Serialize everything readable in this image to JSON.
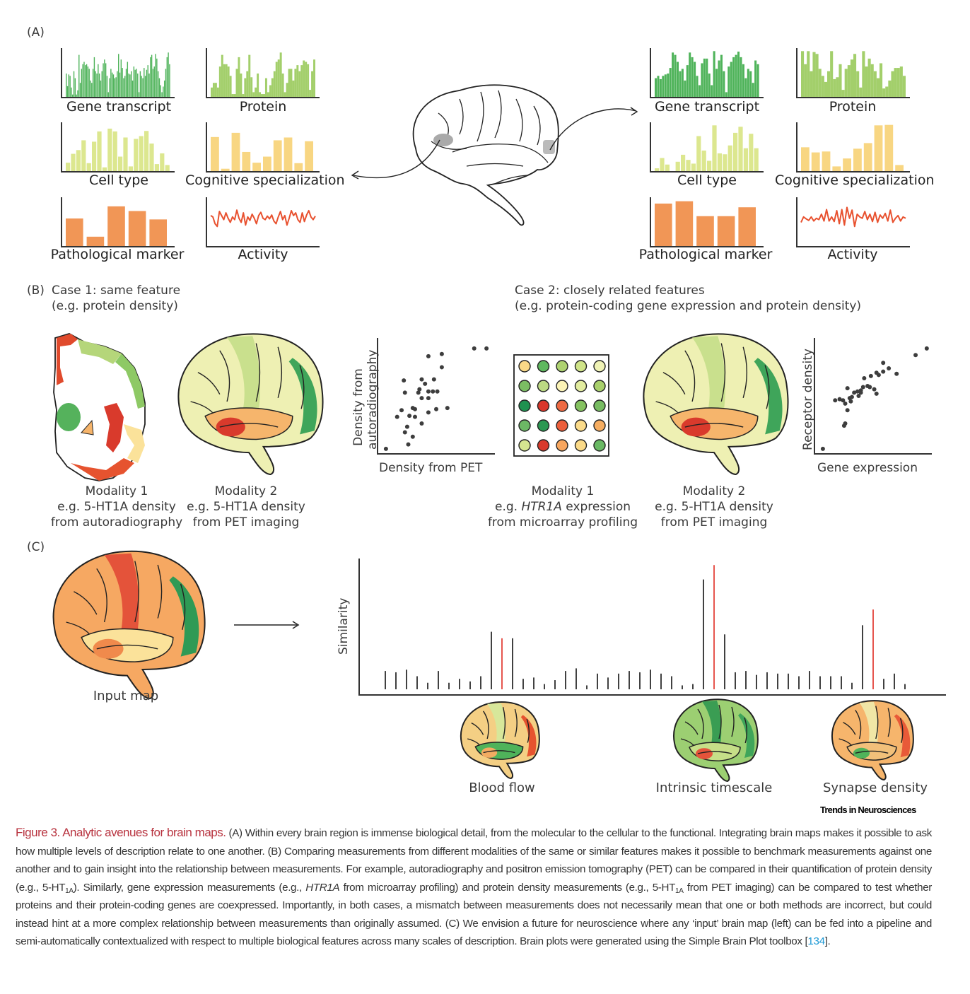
{
  "panel_labels": {
    "a": "(A)",
    "b": "(B)",
    "c": "(C)"
  },
  "panel_a": {
    "left_region_charts": [
      {
        "id": "gene-transcript",
        "label": "Gene transcript",
        "type": "bar",
        "color": "#4fb35a"
      },
      {
        "id": "protein",
        "label": "Protein",
        "type": "bar",
        "color": "#a3cf6b"
      },
      {
        "id": "cell-type",
        "label": "Cell type",
        "type": "bar",
        "color": "#dce78f"
      },
      {
        "id": "cognitive-specialization",
        "label": "Cognitive specialization",
        "type": "bar",
        "color": "#f8d682"
      },
      {
        "id": "pathological-marker",
        "label": "Pathological marker",
        "type": "bar",
        "color": "#f19656"
      },
      {
        "id": "activity",
        "label": "Activity",
        "type": "line",
        "color": "#e8512f"
      }
    ],
    "right_region_charts_labels": [
      "Gene transcript",
      "Protein",
      "Cell type",
      "Cognitive specialization",
      "Pathological marker",
      "Activity"
    ],
    "brain_icon": "brain-outline-icon"
  },
  "panel_b": {
    "case1_title": "Case 1: same feature",
    "case1_subtitle": "(e.g. protein density)",
    "case2_title": "Case 2: closely related features",
    "case2_subtitle": "(e.g. protein-coding gene expression and protein density)",
    "case1_mod1": [
      "Modality 1",
      "e.g. 5-HT1A density",
      "from autoradiography"
    ],
    "case1_mod2": [
      "Modality 2",
      "e.g. 5-HT1A density",
      "from PET imaging"
    ],
    "case2_mod1": {
      "line1": "Modality 1",
      "line2_prefix": "e.g. ",
      "line2_italic": "HTR1A",
      "line2_suffix": " expression",
      "line3": "from microarray profiling"
    },
    "case2_mod2": [
      "Modality 2",
      "e.g. 5-HT1A density",
      "from PET imaging"
    ],
    "microarray_colors": [
      [
        "#f9d887",
        "#5fb85f",
        "#aed271",
        "#d0e489",
        "#eff2b5"
      ],
      [
        "#7bbd63",
        "#bcd983",
        "#fbf3b6",
        "#e2ec9f",
        "#a9d06c"
      ],
      [
        "#1f9150",
        "#d9362b",
        "#ee6a43",
        "#85c261",
        "#78bc62"
      ],
      [
        "#6cb865",
        "#2c9852",
        "#ec5f3c",
        "#fbdb8a",
        "#f6ad61"
      ],
      [
        "#d5e690",
        "#d93a2c",
        "#f7a65f",
        "#fbda88",
        "#6ab964"
      ]
    ]
  },
  "panel_c": {
    "input_map_label": "Input map",
    "target_maps": [
      "Blood flow",
      "Intrinsic timescale",
      "Synapse density"
    ]
  },
  "journal": "Trends in Neurosciences",
  "caption": {
    "title": "Figure 3. Analytic avenues for brain maps.",
    "part1": " (A) Within every brain region is immense biological detail, from the molecular to the cellular to the functional. Integrating brain maps makes it possible to ask how multiple levels of description relate to one another. (B) Comparing measurements from different modalities of the same or similar features makes it possible to benchmark measurements against one another and to gain insight into the relationship between measurements. For example, autoradiography and positron emission tomography (PET) can be compared in their quantification of protein density (e.g., 5-HT",
    "sub1": "1A",
    "part2": "). Similarly, gene expression measurements (e.g., ",
    "italic": "HTR1A",
    "part3": " from microarray profiling) and protein density measurements (e.g., 5-HT",
    "sub2": "1A",
    "part4": " from PET imaging) can be compared to test whether proteins and their protein-coding genes are coexpressed. Importantly, in both cases, a mismatch between measurements does not necessarily mean that one or both methods are incorrect, but could instead hint at a more complex relationship between measurements than originally assumed. (C) We envision a future for neuroscience where any ‘input’ brain map (left) can be fed into a pipeline and semi-automatically contextualized with respect to multiple biological features across many scales of description. Brain plots were generated using the Simple Brain Plot toolbox [",
    "ref": "134",
    "part5": "]."
  },
  "colors": {
    "accent_red": "#e02b22",
    "stem_black": "#111111",
    "caption_title": "#b8333f",
    "ref_link": "#1e9ad6"
  },
  "chart_data": [
    {
      "id": "a-left-cell-type",
      "type": "bar",
      "title": "Cell type",
      "ylim": [
        0,
        1
      ],
      "values": [
        0.18,
        0.37,
        0.45,
        0.66,
        0.17,
        0.63,
        0.85,
        0.08,
        0.91,
        0.85,
        0.31,
        0.72,
        0.1,
        0.69,
        0.75,
        0.86,
        0.59,
        0.15,
        0.38,
        0.13
      ]
    },
    {
      "id": "a-left-cognitive",
      "type": "bar",
      "title": "Cognitive specialization",
      "ylim": [
        0,
        1
      ],
      "values": [
        0.73,
        0.05,
        0.82,
        0.41,
        0.18,
        0.31,
        0.66,
        0.72,
        0.17,
        0.64
      ]
    },
    {
      "id": "a-left-pathological",
      "type": "bar",
      "title": "Pathological marker",
      "ylim": [
        0,
        1
      ],
      "values": [
        0.59,
        0.2,
        0.85,
        0.75,
        0.57
      ]
    },
    {
      "id": "a-right-cell-type",
      "type": "bar",
      "title": "Cell type",
      "ylim": [
        0,
        1
      ],
      "values": [
        0.06,
        0.28,
        0.14,
        0,
        0.2,
        0.35,
        0.24,
        0.16,
        0.75,
        0.44,
        0.22,
        0.98,
        0.38,
        0.36,
        0.55,
        0.82,
        0.95,
        0.49,
        0.8,
        0.49
      ]
    },
    {
      "id": "a-right-cognitive",
      "type": "bar",
      "title": "Cognitive specialization",
      "ylim": [
        0,
        1
      ],
      "values": [
        0.51,
        0.4,
        0.42,
        0.1,
        0.27,
        0.48,
        0.6,
        0.98,
        0.99,
        0.13
      ]
    },
    {
      "id": "a-right-pathological",
      "type": "bar",
      "title": "Pathological marker",
      "ylim": [
        0,
        1
      ],
      "values": [
        0.91,
        0.96,
        0.64,
        0.64,
        0.83
      ]
    },
    {
      "id": "a-left-gene-transcript",
      "type": "bar",
      "title": "Gene transcript",
      "ylim": [
        0,
        1
      ],
      "values": [
        0.5,
        0.23,
        0.48,
        0.45,
        0.2,
        0.05,
        0.55,
        0.4,
        0.05,
        0.14,
        0.9,
        0.3,
        0.6,
        0.7,
        0.75,
        0.68,
        0.7,
        0.65,
        0.6,
        0.35,
        0.3,
        0.6,
        0.85,
        0.55,
        0.5,
        0.7,
        0.5,
        0.35,
        0.55,
        0.72,
        0.8,
        0.72,
        0.45,
        0.1,
        0.4,
        0.6,
        0.52,
        0.48,
        0.4,
        0.42,
        0.55,
        0.92,
        0.52,
        0.8,
        0.62,
        0.4,
        0.45,
        0.6,
        0.75,
        0.5,
        0.48,
        0.55,
        0.35,
        0.65,
        0.58,
        0.6,
        0.5,
        0.1,
        0.55,
        0.45,
        0.4,
        0.62,
        0.45,
        0.58,
        0.68,
        0.5,
        0.85,
        0.9,
        0.6,
        0.65,
        0.92,
        0.82,
        0.55,
        0.4,
        0.25,
        0.1,
        0.22,
        0.35,
        0.6,
        0.85,
        0.95,
        0.7
      ]
    },
    {
      "id": "a-left-protein",
      "type": "bar",
      "title": "Protein",
      "ylim": [
        0,
        1
      ],
      "values": [
        0.2,
        0.3,
        0.3,
        0.2,
        0.65,
        0.9,
        0.7,
        0.7,
        0.65,
        0.45,
        0.06,
        0.06,
        0.6,
        0.85,
        0.5,
        0.06,
        0.4,
        0.55,
        0.9,
        0.42,
        0.1,
        0.2,
        0.5,
        0.1,
        0.06,
        0.06,
        0.4,
        0.1,
        0.25,
        0.4,
        0.55,
        0.75,
        0.8,
        0.95,
        0.5,
        0.1,
        0.3,
        0.6,
        0.6,
        0.35,
        0.6,
        0.68,
        0.55,
        0.68,
        0.78,
        0.75,
        0.7,
        0.15,
        0.55,
        0.8
      ]
    },
    {
      "id": "a-right-gene-transcript",
      "type": "bar",
      "title": "Gene transcript",
      "ylim": [
        0,
        1
      ],
      "values": [
        0.4,
        0.45,
        0.38,
        0.45,
        0.48,
        0.5,
        0.62,
        0.95,
        0.9,
        0.75,
        0.55,
        0.6,
        0.35,
        0.68,
        0.95,
        0.85,
        0.75,
        0.45,
        0.25,
        0.72,
        0.82,
        0.82,
        0.5,
        0.25,
        0.98,
        0.6,
        0.78,
        0.9,
        0.55,
        0.1,
        0.65,
        0.75,
        0.85,
        0.9,
        0.97,
        0.85,
        0.7,
        0.4,
        0.6,
        0.55,
        0.3,
        0.78,
        0.7
      ]
    },
    {
      "id": "a-right-protein",
      "type": "bar",
      "title": "Protein",
      "ylim": [
        0,
        1
      ],
      "values": [
        0.98,
        0.7,
        0.98,
        0.55,
        0.96,
        0.92,
        0.6,
        0.45,
        0.32,
        0.55,
        0.98,
        0.38,
        0.42,
        0.7,
        0.15,
        0.6,
        0.68,
        0.8,
        0.92,
        0.55,
        0.2,
        0.98,
        0.65,
        0.82,
        0.7,
        0.55,
        0.4,
        0.72,
        0.18,
        0.22,
        0.35,
        0.55,
        0.62,
        0.62,
        0.65,
        0.45
      ]
    },
    {
      "id": "a-left-activity",
      "type": "line",
      "title": "Activity",
      "ylim": [
        0,
        1
      ],
      "values": [
        0.6,
        0.55,
        0.3,
        0.2,
        0.75,
        0.6,
        0.45,
        0.7,
        0.5,
        0.35,
        0.55,
        0.45,
        0.8,
        0.5,
        0.35,
        0.7,
        0.25,
        0.55,
        0.42,
        0.65,
        0.5,
        0.3,
        0.6,
        0.72,
        0.5,
        0.45,
        0.58,
        0.48,
        0.62,
        0.4,
        0.3,
        0.55,
        0.75,
        0.45,
        0.6,
        0.25,
        0.5,
        0.78,
        0.6,
        0.7,
        0.45,
        0.35,
        0.7,
        0.38,
        0.62,
        0.78,
        0.55,
        0.45,
        0.58
      ]
    },
    {
      "id": "a-right-activity",
      "type": "line",
      "title": "Activity",
      "ylim": [
        0,
        1
      ],
      "values": [
        0.35,
        0.55,
        0.48,
        0.42,
        0.55,
        0.4,
        0.5,
        0.45,
        0.65,
        0.4,
        0.82,
        0.4,
        0.55,
        0.38,
        0.78,
        0.3,
        0.82,
        0.25,
        0.9,
        0.5,
        0.8,
        0.2,
        0.65,
        0.55,
        0.5,
        0.75,
        0.45,
        0.65,
        0.38,
        0.72,
        0.35,
        0.62,
        0.5,
        0.68,
        0.4,
        0.8,
        0.35,
        0.5,
        0.6,
        0.4,
        0.55,
        0.5
      ]
    },
    {
      "id": "b-scatter-case1",
      "type": "scatter",
      "xlabel": "Density from PET",
      "ylabel": "Density from autoradiography",
      "xlim": [
        0,
        100
      ],
      "ylim": [
        0,
        100
      ],
      "points": [
        [
          84,
          93
        ],
        [
          95,
          93
        ],
        [
          43,
          86
        ],
        [
          55,
          88
        ],
        [
          55,
          76
        ],
        [
          21,
          64
        ],
        [
          37,
          65
        ],
        [
          48,
          65
        ],
        [
          40,
          61
        ],
        [
          35,
          56
        ],
        [
          22,
          53
        ],
        [
          34,
          53
        ],
        [
          43,
          54
        ],
        [
          47,
          54
        ],
        [
          51,
          54
        ],
        [
          37,
          48
        ],
        [
          43,
          48
        ],
        [
          19,
          37
        ],
        [
          29,
          39
        ],
        [
          31,
          38
        ],
        [
          50,
          38
        ],
        [
          60,
          39
        ],
        [
          43,
          35
        ],
        [
          15,
          31
        ],
        [
          26,
          32
        ],
        [
          31,
          31
        ],
        [
          37,
          25
        ],
        [
          24,
          22
        ],
        [
          22,
          17
        ],
        [
          29,
          13
        ],
        [
          25,
          6
        ],
        [
          5,
          2
        ]
      ]
    },
    {
      "id": "b-scatter-case2",
      "type": "scatter",
      "xlabel": "Gene expression",
      "ylabel": "Receptor density",
      "xlim": [
        0,
        100
      ],
      "ylim": [
        0,
        100
      ],
      "points": [
        [
          98,
          93
        ],
        [
          88,
          87
        ],
        [
          59,
          80
        ],
        [
          64,
          75
        ],
        [
          59,
          72
        ],
        [
          71,
          70
        ],
        [
          53,
          71
        ],
        [
          55,
          69
        ],
        [
          48,
          68
        ],
        [
          42,
          66
        ],
        [
          27,
          57
        ],
        [
          41,
          58
        ],
        [
          45,
          59
        ],
        [
          47,
          58
        ],
        [
          51,
          56
        ],
        [
          53,
          52
        ],
        [
          39,
          55
        ],
        [
          36,
          54
        ],
        [
          33,
          53
        ],
        [
          39,
          53
        ],
        [
          16,
          46
        ],
        [
          20,
          47
        ],
        [
          23,
          46
        ],
        [
          25,
          43
        ],
        [
          29,
          48
        ],
        [
          31,
          49
        ],
        [
          30,
          45
        ],
        [
          37,
          50
        ],
        [
          27,
          37
        ],
        [
          25,
          25
        ],
        [
          24,
          23
        ],
        [
          5,
          2
        ]
      ]
    },
    {
      "id": "c-similarity",
      "type": "bar",
      "ylabel": "Similarity",
      "xlabel": "",
      "ylim": [
        0,
        1
      ],
      "highlighted": [
        11,
        31,
        46
      ],
      "highlighted_labels": [
        "Blood flow",
        "Intrinsic timescale",
        "Synapse density"
      ],
      "values": [
        0.14,
        0.13,
        0.15,
        0.1,
        0.05,
        0.14,
        0.05,
        0.08,
        0.06,
        0.1,
        0.44,
        0.39,
        0.39,
        0.08,
        0.09,
        0.04,
        0.07,
        0.14,
        0.16,
        0.03,
        0.12,
        0.09,
        0.12,
        0.14,
        0.13,
        0.15,
        0.12,
        0.1,
        0.03,
        0.04,
        0.84,
        0.95,
        0.42,
        0.13,
        0.14,
        0.11,
        0.13,
        0.12,
        0.12,
        0.1,
        0.14,
        0.1,
        0.1,
        0.1,
        0.05,
        0.49,
        0.61,
        0.08,
        0.12,
        0.04
      ]
    }
  ]
}
